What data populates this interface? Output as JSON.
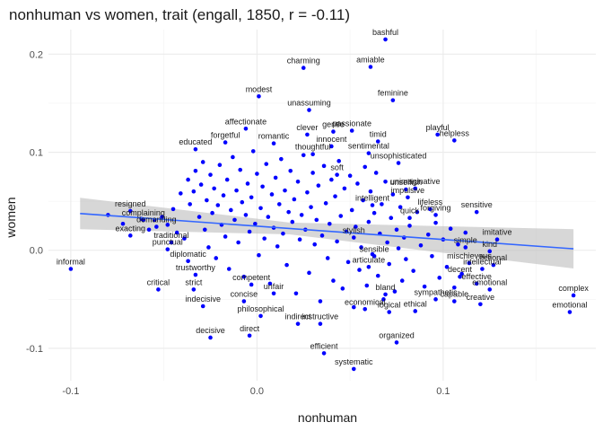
{
  "chart_data": {
    "type": "scatter",
    "title": "nonhuman vs women, trait (engall, 1850, r = -0.11)",
    "xlabel": "nonhuman",
    "ylabel": "women",
    "xlim": [
      -0.112,
      0.182
    ],
    "ylim": [
      -0.133,
      0.225
    ],
    "x_ticks": [
      -0.1,
      0.0,
      0.1
    ],
    "x_tick_labels": [
      "-0.1",
      "0.0",
      "0.1"
    ],
    "y_ticks": [
      -0.1,
      0.0,
      0.1,
      0.2
    ],
    "y_tick_labels": [
      "-0.1",
      "0.0",
      "0.1",
      "0.2"
    ],
    "grid": true,
    "point_color": "#0000ff",
    "regression_line_color": "#3366ff",
    "confidence_band_color": "#bdbdbd",
    "regression": {
      "x": [
        -0.095,
        0.17
      ],
      "y": [
        0.0375,
        0.0015
      ],
      "band_halfwidth_start": 0.016,
      "band_halfwidth_end": 0.02
    },
    "labeled_points": [
      {
        "label": "bashful",
        "x": 0.069,
        "y": 0.215
      },
      {
        "label": "amiable",
        "x": 0.061,
        "y": 0.187
      },
      {
        "label": "charming",
        "x": 0.025,
        "y": 0.186
      },
      {
        "label": "modest",
        "x": 0.001,
        "y": 0.157
      },
      {
        "label": "feminine",
        "x": 0.073,
        "y": 0.153
      },
      {
        "label": "unassuming",
        "x": 0.028,
        "y": 0.143
      },
      {
        "label": "playful",
        "x": 0.097,
        "y": 0.118
      },
      {
        "label": "helpless",
        "x": 0.106,
        "y": 0.112
      },
      {
        "label": "affectionate",
        "x": -0.006,
        "y": 0.124
      },
      {
        "label": "passionate",
        "x": 0.051,
        "y": 0.122
      },
      {
        "label": "clever",
        "x": 0.027,
        "y": 0.118
      },
      {
        "label": "gentle",
        "x": 0.041,
        "y": 0.121
      },
      {
        "label": "forgetful",
        "x": -0.017,
        "y": 0.11
      },
      {
        "label": "romantic",
        "x": 0.009,
        "y": 0.109
      },
      {
        "label": "timid",
        "x": 0.065,
        "y": 0.111
      },
      {
        "label": "educated",
        "x": -0.033,
        "y": 0.103
      },
      {
        "label": "unsophisticated",
        "x": 0.076,
        "y": 0.089
      },
      {
        "label": "soft",
        "x": 0.043,
        "y": 0.077
      },
      {
        "label": "unselfish",
        "x": 0.08,
        "y": 0.062
      },
      {
        "label": "impulsive",
        "x": 0.081,
        "y": 0.054
      },
      {
        "label": "lifeless",
        "x": 0.093,
        "y": 0.042
      },
      {
        "label": "sensitive",
        "x": 0.118,
        "y": 0.039
      },
      {
        "label": "forgiving",
        "x": 0.096,
        "y": 0.036
      },
      {
        "label": "resigned",
        "x": -0.068,
        "y": 0.04
      },
      {
        "label": "complaining",
        "x": -0.061,
        "y": 0.031
      },
      {
        "label": "demanding",
        "x": -0.054,
        "y": 0.024
      },
      {
        "label": "exacting",
        "x": -0.068,
        "y": 0.015
      },
      {
        "label": "informal",
        "x": -0.1,
        "y": -0.019
      },
      {
        "label": "traditional",
        "x": -0.046,
        "y": 0.008
      },
      {
        "label": "punctual",
        "x": -0.048,
        "y": 0.001
      },
      {
        "label": "imitative",
        "x": 0.129,
        "y": 0.011
      },
      {
        "label": "simple",
        "x": 0.112,
        "y": 0.003
      },
      {
        "label": "kind",
        "x": 0.125,
        "y": -0.001
      },
      {
        "label": "mischievous",
        "x": 0.114,
        "y": -0.013
      },
      {
        "label": "intellectual",
        "x": 0.121,
        "y": -0.019
      },
      {
        "label": "fictional",
        "x": 0.127,
        "y": -0.015
      },
      {
        "label": "diplomatic",
        "x": -0.037,
        "y": -0.011
      },
      {
        "label": "trustworthy",
        "x": -0.033,
        "y": -0.025
      },
      {
        "label": "critical",
        "x": -0.053,
        "y": -0.04
      },
      {
        "label": "strict",
        "x": -0.034,
        "y": -0.04
      },
      {
        "label": "indecisive",
        "x": -0.029,
        "y": -0.057
      },
      {
        "label": "concise",
        "x": -0.007,
        "y": -0.052
      },
      {
        "label": "philosophical",
        "x": 0.002,
        "y": -0.067
      },
      {
        "label": "decisive",
        "x": -0.025,
        "y": -0.089
      },
      {
        "label": "direct",
        "x": -0.004,
        "y": -0.087
      },
      {
        "label": "indirect",
        "x": 0.022,
        "y": -0.075
      },
      {
        "label": "instructive",
        "x": 0.034,
        "y": -0.075
      },
      {
        "label": "efficient",
        "x": 0.036,
        "y": -0.105
      },
      {
        "label": "systematic",
        "x": 0.052,
        "y": -0.121
      },
      {
        "label": "organized",
        "x": 0.075,
        "y": -0.094
      },
      {
        "label": "logical",
        "x": 0.071,
        "y": -0.063
      },
      {
        "label": "ethical",
        "x": 0.085,
        "y": -0.062
      },
      {
        "label": "economical",
        "x": 0.058,
        "y": -0.06
      },
      {
        "label": "capable",
        "x": 0.106,
        "y": -0.052
      },
      {
        "label": "creative",
        "x": 0.12,
        "y": -0.055
      },
      {
        "label": "emotional",
        "x": 0.125,
        "y": -0.04
      },
      {
        "label": "decent",
        "x": 0.109,
        "y": -0.027
      },
      {
        "label": "effective",
        "x": 0.118,
        "y": -0.034
      },
      {
        "label": "sympathetic",
        "x": 0.096,
        "y": -0.05
      },
      {
        "label": "complex",
        "x": 0.17,
        "y": -0.046
      },
      {
        "label": "emotional",
        "x": 0.168,
        "y": -0.063
      },
      {
        "label": "bland",
        "x": 0.069,
        "y": -0.045
      },
      {
        "label": "unfair",
        "x": 0.009,
        "y": -0.044
      },
      {
        "label": "competent",
        "x": -0.003,
        "y": -0.035
      },
      {
        "label": "sensible",
        "x": 0.063,
        "y": -0.006
      },
      {
        "label": "articulate",
        "x": 0.06,
        "y": -0.017
      },
      {
        "label": "stylish",
        "x": 0.052,
        "y": 0.013
      },
      {
        "label": "quick",
        "x": 0.082,
        "y": 0.033
      },
      {
        "label": "intelligent",
        "x": 0.062,
        "y": 0.046
      },
      {
        "label": "unimaginative",
        "x": 0.085,
        "y": 0.063
      },
      {
        "label": "thoughtful",
        "x": 0.03,
        "y": 0.098
      },
      {
        "label": "sentimental",
        "x": 0.06,
        "y": 0.099
      },
      {
        "label": "innocent",
        "x": 0.04,
        "y": 0.106
      }
    ],
    "unlabeled_points": [
      [
        -0.08,
        0.036
      ],
      [
        -0.072,
        0.027
      ],
      [
        -0.062,
        0.032
      ],
      [
        -0.058,
        0.021
      ],
      [
        -0.055,
        0.031
      ],
      [
        -0.051,
        0.034
      ],
      [
        -0.048,
        0.026
      ],
      [
        -0.045,
        0.042
      ],
      [
        -0.043,
        0.018
      ],
      [
        -0.041,
        0.058
      ],
      [
        -0.039,
        0.012
      ],
      [
        -0.037,
        0.072
      ],
      [
        -0.036,
        0.047
      ],
      [
        -0.034,
        0.06
      ],
      [
        -0.033,
        0.081
      ],
      [
        -0.031,
        0.034
      ],
      [
        -0.03,
        0.067
      ],
      [
        -0.029,
        0.09
      ],
      [
        -0.028,
        0.021
      ],
      [
        -0.027,
        0.051
      ],
      [
        -0.026,
        0.003
      ],
      [
        -0.025,
        0.077
      ],
      [
        -0.024,
        0.038
      ],
      [
        -0.023,
        0.063
      ],
      [
        -0.022,
        -0.008
      ],
      [
        -0.021,
        0.046
      ],
      [
        -0.02,
        0.087
      ],
      [
        -0.019,
        0.026
      ],
      [
        -0.018,
        0.056
      ],
      [
        -0.017,
        0.014
      ],
      [
        -0.016,
        0.072
      ],
      [
        -0.015,
        -0.019
      ],
      [
        -0.014,
        0.041
      ],
      [
        -0.013,
        0.095
      ],
      [
        -0.012,
        0.031
      ],
      [
        -0.011,
        0.061
      ],
      [
        -0.01,
        0.008
      ],
      [
        -0.009,
        0.082
      ],
      [
        -0.008,
        0.049
      ],
      [
        -0.007,
        -0.027
      ],
      [
        -0.006,
        0.036
      ],
      [
        -0.005,
        0.068
      ],
      [
        -0.004,
        0.019
      ],
      [
        -0.003,
        0.054
      ],
      [
        -0.002,
        0.101
      ],
      [
        -0.001,
        0.027
      ],
      [
        0.0,
        0.078
      ],
      [
        0.001,
        -0.005
      ],
      [
        0.002,
        0.043
      ],
      [
        0.003,
        0.065
      ],
      [
        0.004,
        0.012
      ],
      [
        0.005,
        0.088
      ],
      [
        0.006,
        0.034
      ],
      [
        0.007,
        -0.034
      ],
      [
        0.008,
        0.057
      ],
      [
        0.009,
        0.023
      ],
      [
        0.01,
        0.074
      ],
      [
        0.011,
        0.004
      ],
      [
        0.012,
        0.047
      ],
      [
        0.013,
        0.093
      ],
      [
        0.014,
        0.017
      ],
      [
        0.015,
        0.061
      ],
      [
        0.016,
        -0.015
      ],
      [
        0.017,
        0.039
      ],
      [
        0.018,
        0.081
      ],
      [
        0.019,
        0.029
      ],
      [
        0.02,
        0.052
      ],
      [
        0.021,
        -0.044
      ],
      [
        0.022,
        0.07
      ],
      [
        0.023,
        0.011
      ],
      [
        0.024,
        0.036
      ],
      [
        0.025,
        0.097
      ],
      [
        0.026,
        0.021
      ],
      [
        0.027,
        0.059
      ],
      [
        0.028,
        -0.023
      ],
      [
        0.029,
        0.044
      ],
      [
        0.03,
        0.079
      ],
      [
        0.031,
        0.006
      ],
      [
        0.032,
        0.031
      ],
      [
        0.033,
        0.066
      ],
      [
        0.034,
        -0.052
      ],
      [
        0.035,
        0.015
      ],
      [
        0.036,
        0.086
      ],
      [
        0.037,
        0.048
      ],
      [
        0.038,
        -0.008
      ],
      [
        0.039,
        0.027
      ],
      [
        0.04,
        0.072
      ],
      [
        0.041,
        -0.031
      ],
      [
        0.042,
        0.055
      ],
      [
        0.043,
        0.009
      ],
      [
        0.044,
        0.091
      ],
      [
        0.045,
        0.035
      ],
      [
        0.046,
        -0.039
      ],
      [
        0.047,
        0.063
      ],
      [
        0.048,
        0.019
      ],
      [
        0.049,
        -0.012
      ],
      [
        0.05,
        0.076
      ],
      [
        0.051,
        0.041
      ],
      [
        0.052,
        -0.058
      ],
      [
        0.053,
        0.024
      ],
      [
        0.054,
        0.068
      ],
      [
        0.055,
        -0.02
      ],
      [
        0.056,
        0.003
      ],
      [
        0.057,
        0.051
      ],
      [
        0.058,
        0.085
      ],
      [
        0.059,
        -0.036
      ],
      [
        0.06,
        0.029
      ],
      [
        0.061,
        0.06
      ],
      [
        0.062,
        -0.004
      ],
      [
        0.063,
        0.038
      ],
      [
        0.064,
        0.079
      ],
      [
        0.065,
        -0.026
      ],
      [
        0.066,
        0.017
      ],
      [
        0.067,
        0.047
      ],
      [
        0.068,
        -0.05
      ],
      [
        0.069,
        0.07
      ],
      [
        0.07,
        0.008
      ],
      [
        0.071,
        -0.014
      ],
      [
        0.072,
        0.033
      ],
      [
        0.073,
        0.057
      ],
      [
        0.074,
        -0.042
      ],
      [
        0.075,
        0.021
      ],
      [
        0.076,
        0.002
      ],
      [
        0.077,
        0.044
      ],
      [
        0.078,
        -0.031
      ],
      [
        0.079,
        0.013
      ],
      [
        0.08,
        -0.009
      ],
      [
        0.082,
        0.025
      ],
      [
        0.084,
        -0.021
      ],
      [
        0.086,
        0.039
      ],
      [
        0.088,
        0.005
      ],
      [
        0.09,
        -0.037
      ],
      [
        0.092,
        0.016
      ],
      [
        0.094,
        -0.006
      ],
      [
        0.096,
        0.028
      ],
      [
        0.098,
        -0.028
      ],
      [
        0.1,
        0.011
      ],
      [
        0.102,
        -0.017
      ],
      [
        0.104,
        0.022
      ],
      [
        0.106,
        -0.038
      ],
      [
        0.108,
        0.006
      ],
      [
        0.11,
        -0.024
      ],
      [
        0.112,
        0.018
      ]
    ]
  }
}
